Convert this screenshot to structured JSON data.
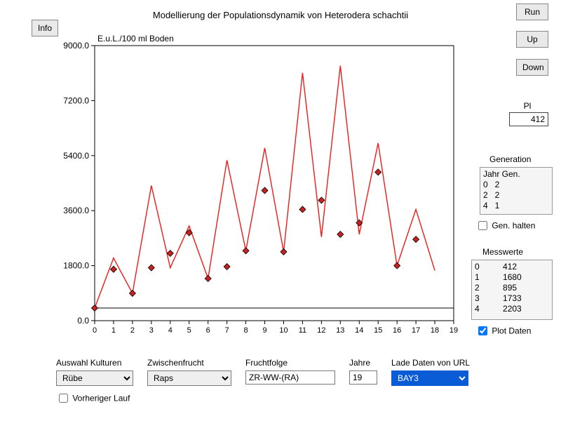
{
  "title": "Modellierung der Populationsdynamik von Heterodera schachtii",
  "buttons": {
    "info": "Info",
    "run": "Run",
    "up": "Up",
    "down": "Down"
  },
  "pi": {
    "label": "Pl",
    "value": "412"
  },
  "generation": {
    "label": "Generation",
    "header": "Jahr Gen.",
    "rows": [
      [
        0,
        2
      ],
      [
        2,
        2
      ],
      [
        4,
        1
      ]
    ]
  },
  "gen_halten": {
    "label": "Gen. halten",
    "checked": false
  },
  "messwerte": {
    "label": "Messwerte",
    "rows": [
      [
        0,
        412
      ],
      [
        1,
        1680
      ],
      [
        2,
        895
      ],
      [
        3,
        1733
      ],
      [
        4,
        2203
      ]
    ]
  },
  "plot_daten": {
    "label": "Plot Daten",
    "checked": true
  },
  "form": {
    "kultur": {
      "label": "Auswahl Kulturen",
      "value": "Rübe"
    },
    "zwischen": {
      "label": "Zwischenfrucht",
      "value": "Raps"
    },
    "fruchtfolge": {
      "label": "Fruchtfolge",
      "value": "ZR-WW-(RA)"
    },
    "jahre": {
      "label": "Jahre",
      "value": "19"
    },
    "url": {
      "label": "Lade Daten von URL",
      "value": "BAY3"
    }
  },
  "vorheriger": {
    "label": "Vorheriger Lauf",
    "checked": false
  },
  "chart": {
    "type": "line+scatter",
    "y_title": "E.u.L./100 ml Boden",
    "x_min": 0,
    "x_max": 19,
    "y_min": 0,
    "y_max": 9000,
    "x_tick_step": 1,
    "y_ticks": [
      0.0,
      1800.0,
      3600.0,
      5400.0,
      7200.0,
      9000.0
    ],
    "axis_color": "#000000",
    "background": "#ffffff",
    "hline_y": 412,
    "hline_color": "#000000",
    "line_color": "#ef1b1b",
    "marker_fill": "#c62222",
    "marker_stroke": "#000000",
    "marker_size": 9,
    "x": [
      0,
      1,
      2,
      3,
      4,
      5,
      6,
      7,
      8,
      9,
      10,
      11,
      12,
      13,
      14,
      15,
      16,
      17,
      18
    ],
    "line_y": [
      412,
      2050,
      895,
      4420,
      1733,
      3100,
      1378,
      5250,
      2287,
      5650,
      2252,
      8110,
      2741,
      8340,
      2824,
      5810,
      1800,
      3640,
      1640
    ],
    "marker_x": [
      0,
      1,
      2,
      3,
      4,
      5,
      6,
      7,
      8,
      9,
      10,
      11,
      12,
      13,
      14,
      15,
      16,
      17
    ],
    "marker_y": [
      412,
      1680,
      895,
      1733,
      2203,
      2878,
      1378,
      1767,
      2287,
      4260,
      2252,
      3640,
      3940,
      2824,
      3200,
      4860,
      1800,
      2660
    ]
  }
}
